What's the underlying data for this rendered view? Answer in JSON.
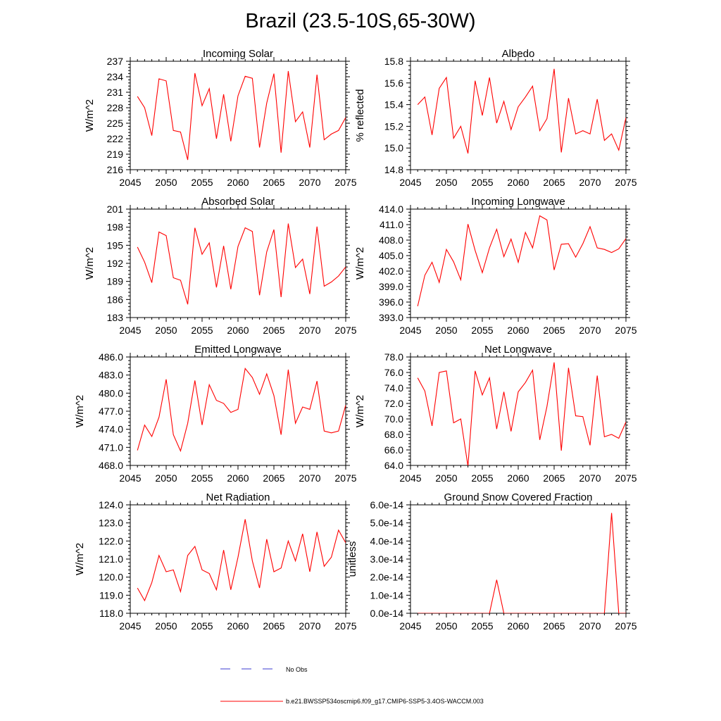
{
  "title": "Brazil (23.5-10S,65-30W)",
  "colors": {
    "model": "#ff0000",
    "obs": "#3b3bd0",
    "axis": "#000000"
  },
  "legend": {
    "obs_label": "No Obs",
    "model_label": "b.e21.BWSSP534oscmip6.f09_g17.CMIP6-SSP5-3.4OS-WACCM.003"
  },
  "chart_data": [
    {
      "type": "line",
      "title": "Incoming Solar",
      "ylabel": "W/m^2",
      "xlabel": "",
      "xlim": [
        2045,
        2075
      ],
      "ylim": [
        216,
        237
      ],
      "yticks": [
        "216",
        "219",
        "222",
        "225",
        "228",
        "231",
        "234",
        "237"
      ],
      "xticks": [
        "2045",
        "2050",
        "2055",
        "2060",
        "2065",
        "2070",
        "2075"
      ],
      "x": [
        2046,
        2047,
        2048,
        2049,
        2050,
        2051,
        2052,
        2053,
        2054,
        2055,
        2056,
        2057,
        2058,
        2059,
        2060,
        2061,
        2062,
        2063,
        2064,
        2065,
        2066,
        2067,
        2068,
        2069,
        2070,
        2071,
        2072,
        2073,
        2074,
        2075
      ],
      "series": [
        {
          "name": "b.e21.BWSSP534oscmip6.f09_g17.CMIP6-SSP5-3.4OS-WACCM.003",
          "values": [
            230.2,
            228.0,
            222.6,
            233.6,
            233.2,
            223.6,
            223.3,
            217.9,
            234.7,
            228.4,
            231.7,
            222.0,
            230.6,
            221.5,
            230.3,
            234.1,
            233.7,
            220.3,
            228.9,
            234.6,
            219.3,
            235.1,
            225.3,
            227.2,
            220.3,
            234.4,
            221.8,
            222.9,
            223.6,
            226.1
          ]
        }
      ]
    },
    {
      "type": "line",
      "title": "Albedo",
      "ylabel": "% reflected",
      "xlabel": "",
      "xlim": [
        2045,
        2075
      ],
      "ylim": [
        14.8,
        15.8
      ],
      "yticks": [
        "14.8",
        "15.0",
        "15.2",
        "15.4",
        "15.6",
        "15.8"
      ],
      "xticks": [
        "2045",
        "2050",
        "2055",
        "2060",
        "2065",
        "2070",
        "2075"
      ],
      "x": [
        2046,
        2047,
        2048,
        2049,
        2050,
        2051,
        2052,
        2053,
        2054,
        2055,
        2056,
        2057,
        2058,
        2059,
        2060,
        2061,
        2062,
        2063,
        2064,
        2065,
        2066,
        2067,
        2068,
        2069,
        2070,
        2071,
        2072,
        2073,
        2074,
        2075
      ],
      "series": [
        {
          "name": "b.e21.BWSSP534oscmip6.f09_g17.CMIP6-SSP5-3.4OS-WACCM.003",
          "values": [
            15.4,
            15.47,
            15.12,
            15.55,
            15.65,
            15.09,
            15.2,
            14.95,
            15.62,
            15.3,
            15.65,
            15.23,
            15.43,
            15.17,
            15.38,
            15.47,
            15.57,
            15.16,
            15.27,
            15.73,
            14.96,
            15.46,
            15.13,
            15.16,
            15.13,
            15.45,
            15.07,
            15.13,
            14.98,
            15.28
          ]
        }
      ]
    },
    {
      "type": "line",
      "title": "Absorbed Solar",
      "ylabel": "W/m^2",
      "xlabel": "",
      "xlim": [
        2045,
        2075
      ],
      "ylim": [
        183,
        201
      ],
      "yticks": [
        "183",
        "186",
        "189",
        "192",
        "195",
        "198",
        "201"
      ],
      "xticks": [
        "2045",
        "2050",
        "2055",
        "2060",
        "2065",
        "2070",
        "2075"
      ],
      "x": [
        2046,
        2047,
        2048,
        2049,
        2050,
        2051,
        2052,
        2053,
        2054,
        2055,
        2056,
        2057,
        2058,
        2059,
        2060,
        2061,
        2062,
        2063,
        2064,
        2065,
        2066,
        2067,
        2068,
        2069,
        2070,
        2071,
        2072,
        2073,
        2074,
        2075
      ],
      "series": [
        {
          "name": "b.e21.BWSSP534oscmip6.f09_g17.CMIP6-SSP5-3.4OS-WACCM.003",
          "values": [
            194.7,
            192.2,
            188.8,
            197.2,
            196.6,
            189.6,
            189.2,
            185.2,
            197.9,
            193.5,
            195.4,
            188.0,
            194.9,
            187.7,
            194.8,
            197.9,
            197.3,
            186.7,
            193.9,
            197.6,
            186.4,
            198.6,
            191.3,
            192.7,
            186.9,
            198.1,
            188.2,
            188.9,
            189.9,
            191.4
          ]
        }
      ]
    },
    {
      "type": "line",
      "title": "Incoming Longwave",
      "ylabel": "W/m^2",
      "xlabel": "",
      "xlim": [
        2045,
        2075
      ],
      "ylim": [
        393.0,
        414.0
      ],
      "yticks": [
        "393.0",
        "396.0",
        "399.0",
        "402.0",
        "405.0",
        "408.0",
        "411.0",
        "414.0"
      ],
      "xticks": [
        "2045",
        "2050",
        "2055",
        "2060",
        "2065",
        "2070",
        "2075"
      ],
      "x": [
        2046,
        2047,
        2048,
        2049,
        2050,
        2051,
        2052,
        2053,
        2054,
        2055,
        2056,
        2057,
        2058,
        2059,
        2060,
        2061,
        2062,
        2063,
        2064,
        2065,
        2066,
        2067,
        2068,
        2069,
        2070,
        2071,
        2072,
        2073,
        2074,
        2075
      ],
      "series": [
        {
          "name": "b.e21.BWSSP534oscmip6.f09_g17.CMIP6-SSP5-3.4OS-WACCM.003",
          "values": [
            395.2,
            401.2,
            403.7,
            399.8,
            406.2,
            403.8,
            400.3,
            411.1,
            406.0,
            401.7,
            406.5,
            410.1,
            404.8,
            408.2,
            403.7,
            409.5,
            406.5,
            412.7,
            411.9,
            402.2,
            407.2,
            407.3,
            404.7,
            407.3,
            410.6,
            406.5,
            406.2,
            405.6,
            406.3,
            408.3
          ]
        }
      ]
    },
    {
      "type": "line",
      "title": "Emitted Longwave",
      "ylabel": "W/m^2",
      "xlabel": "",
      "xlim": [
        2045,
        2075
      ],
      "ylim": [
        468.0,
        486.0
      ],
      "yticks": [
        "468.0",
        "471.0",
        "474.0",
        "477.0",
        "480.0",
        "483.0",
        "486.0"
      ],
      "xticks": [
        "2045",
        "2050",
        "2055",
        "2060",
        "2065",
        "2070",
        "2075"
      ],
      "x": [
        2046,
        2047,
        2048,
        2049,
        2050,
        2051,
        2052,
        2053,
        2054,
        2055,
        2056,
        2057,
        2058,
        2059,
        2060,
        2061,
        2062,
        2063,
        2064,
        2065,
        2066,
        2067,
        2068,
        2069,
        2070,
        2071,
        2072,
        2073,
        2074,
        2075
      ],
      "series": [
        {
          "name": "b.e21.BWSSP534oscmip6.f09_g17.CMIP6-SSP5-3.4OS-WACCM.003",
          "values": [
            470.5,
            474.7,
            472.8,
            476.0,
            482.3,
            473.1,
            470.4,
            475.0,
            482.1,
            474.7,
            481.4,
            478.8,
            478.3,
            476.8,
            477.3,
            484.1,
            482.6,
            479.8,
            483.2,
            479.6,
            473.1,
            483.9,
            475.0,
            477.7,
            477.3,
            482.0,
            473.7,
            473.4,
            473.7,
            478.0
          ]
        }
      ]
    },
    {
      "type": "line",
      "title": "Net Longwave",
      "ylabel": "W/m^2",
      "xlabel": "",
      "xlim": [
        2045,
        2075
      ],
      "ylim": [
        64.0,
        78.0
      ],
      "yticks": [
        "64.0",
        "66.0",
        "68.0",
        "70.0",
        "72.0",
        "74.0",
        "76.0",
        "78.0"
      ],
      "xticks": [
        "2045",
        "2050",
        "2055",
        "2060",
        "2065",
        "2070",
        "2075"
      ],
      "x": [
        2046,
        2047,
        2048,
        2049,
        2050,
        2051,
        2052,
        2053,
        2054,
        2055,
        2056,
        2057,
        2058,
        2059,
        2060,
        2061,
        2062,
        2063,
        2064,
        2065,
        2066,
        2067,
        2068,
        2069,
        2070,
        2071,
        2072,
        2073,
        2074,
        2075
      ],
      "series": [
        {
          "name": "b.e21.BWSSP534oscmip6.f09_g17.CMIP6-SSP5-3.4OS-WACCM.003",
          "values": [
            75.3,
            73.6,
            69.1,
            76.0,
            76.2,
            69.5,
            70.0,
            63.9,
            76.2,
            73.1,
            75.3,
            68.7,
            73.5,
            68.4,
            73.5,
            74.7,
            76.3,
            67.3,
            71.6,
            77.3,
            65.9,
            76.6,
            70.4,
            70.3,
            66.6,
            75.6,
            67.7,
            68.0,
            67.5,
            69.6
          ]
        }
      ]
    },
    {
      "type": "line",
      "title": "Net Radiation",
      "ylabel": "W/m^2",
      "xlabel": "",
      "xlim": [
        2045,
        2075
      ],
      "ylim": [
        118.0,
        124.0
      ],
      "yticks": [
        "118.0",
        "119.0",
        "120.0",
        "121.0",
        "122.0",
        "123.0",
        "124.0"
      ],
      "xticks": [
        "2045",
        "2050",
        "2055",
        "2060",
        "2065",
        "2070",
        "2075"
      ],
      "x": [
        2046,
        2047,
        2048,
        2049,
        2050,
        2051,
        2052,
        2053,
        2054,
        2055,
        2056,
        2057,
        2058,
        2059,
        2060,
        2061,
        2062,
        2063,
        2064,
        2065,
        2066,
        2067,
        2068,
        2069,
        2070,
        2071,
        2072,
        2073,
        2074,
        2075
      ],
      "series": [
        {
          "name": "b.e21.BWSSP534oscmip6.f09_g17.CMIP6-SSP5-3.4OS-WACCM.003",
          "values": [
            119.4,
            118.7,
            119.7,
            121.2,
            120.3,
            120.4,
            119.2,
            121.2,
            121.7,
            120.4,
            120.2,
            119.3,
            121.5,
            119.3,
            121.1,
            123.2,
            120.9,
            119.4,
            122.1,
            120.3,
            120.5,
            122.0,
            120.9,
            122.4,
            120.3,
            122.5,
            120.6,
            121.1,
            122.6,
            121.9
          ]
        }
      ]
    },
    {
      "type": "line",
      "title": "Ground Snow Covered Fraction",
      "ylabel": "unitless",
      "xlabel": "",
      "xlim": [
        2045,
        2075
      ],
      "ylim": [
        0.0,
        6e-14
      ],
      "yticks": [
        "0.0e-14",
        "1.0e-14",
        "2.0e-14",
        "3.0e-14",
        "4.0e-14",
        "5.0e-14",
        "6.0e-14"
      ],
      "xticks": [
        "2045",
        "2050",
        "2055",
        "2060",
        "2065",
        "2070",
        "2075"
      ],
      "x": [
        2046,
        2047,
        2048,
        2049,
        2050,
        2051,
        2052,
        2053,
        2054,
        2055,
        2056,
        2057,
        2058,
        2059,
        2060,
        2061,
        2062,
        2063,
        2064,
        2065,
        2066,
        2067,
        2068,
        2069,
        2070,
        2071,
        2072,
        2073,
        2074,
        2075
      ],
      "series": [
        {
          "name": "b.e21.BWSSP534oscmip6.f09_g17.CMIP6-SSP5-3.4OS-WACCM.003",
          "values": [
            0,
            0,
            0,
            0,
            0,
            0,
            0,
            0,
            0,
            0,
            0,
            1.85e-14,
            0,
            0,
            0,
            0,
            0,
            0,
            0,
            0,
            0,
            0,
            0,
            0,
            0,
            0,
            0,
            5.55e-14,
            0,
            0
          ]
        }
      ]
    }
  ]
}
